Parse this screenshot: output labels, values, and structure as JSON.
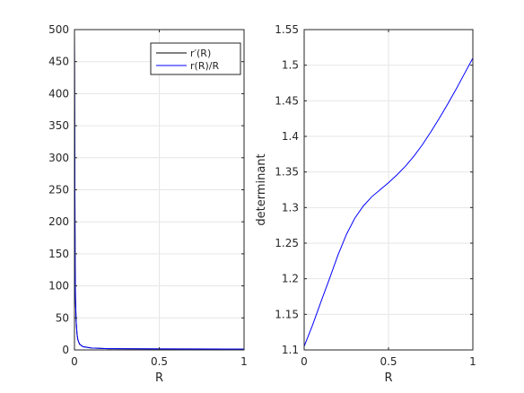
{
  "chart_data": [
    {
      "type": "line",
      "xlabel": "R",
      "ylabel": "",
      "xlim": [
        0,
        1
      ],
      "ylim": [
        0,
        500
      ],
      "xticks": [
        0,
        0.5,
        1
      ],
      "xtick_labels": [
        "0",
        "0.5",
        "1"
      ],
      "yticks": [
        0,
        50,
        100,
        150,
        200,
        250,
        300,
        350,
        400,
        450,
        500
      ],
      "ytick_labels": [
        "0",
        "50",
        "100",
        "150",
        "200",
        "250",
        "300",
        "350",
        "400",
        "450",
        "500"
      ],
      "grid": true,
      "legend": "top-right",
      "series": [
        {
          "name": "r′(R)",
          "color": "#000000",
          "x": [
            0,
            0.002,
            0.004,
            0.006,
            0.01,
            0.015,
            0.02,
            0.03,
            0.05,
            0.1,
            0.2,
            0.5,
            1
          ],
          "y": [
            500,
            300,
            130,
            80,
            45,
            25,
            16,
            9,
            5,
            3,
            2,
            1.5,
            1.3
          ]
        },
        {
          "name": "r(R)/R",
          "color": "#0000ff",
          "x": [
            0,
            0.002,
            0.004,
            0.006,
            0.01,
            0.015,
            0.02,
            0.03,
            0.05,
            0.1,
            0.2,
            0.5,
            1
          ],
          "y": [
            500,
            300,
            130,
            80,
            45,
            25,
            16,
            9,
            5,
            3,
            2,
            1.5,
            1.3
          ]
        }
      ]
    },
    {
      "type": "line",
      "xlabel": "R",
      "ylabel": "determinant",
      "xlim": [
        0,
        1
      ],
      "ylim": [
        1.1,
        1.55
      ],
      "xticks": [
        0,
        0.5,
        1
      ],
      "xtick_labels": [
        "0",
        "0.5",
        "1"
      ],
      "yticks": [
        1.1,
        1.15,
        1.2,
        1.25,
        1.3,
        1.35,
        1.4,
        1.45,
        1.5,
        1.55
      ],
      "ytick_labels": [
        "1.1",
        "1.15",
        "1.2",
        "1.25",
        "1.3",
        "1.35",
        "1.4",
        "1.45",
        "1.5",
        "1.55"
      ],
      "grid": true,
      "series": [
        {
          "name": "",
          "color": "#0000ff",
          "x": [
            0,
            0.05,
            0.1,
            0.15,
            0.2,
            0.25,
            0.3,
            0.35,
            0.4,
            0.45,
            0.5,
            0.55,
            0.6,
            0.65,
            0.7,
            0.75,
            0.8,
            0.85,
            0.9,
            0.95,
            1.0
          ],
          "y": [
            1.105,
            1.135,
            1.168,
            1.2,
            1.233,
            1.262,
            1.285,
            1.302,
            1.315,
            1.325,
            1.335,
            1.346,
            1.358,
            1.372,
            1.388,
            1.406,
            1.425,
            1.445,
            1.466,
            1.488,
            1.51
          ]
        }
      ]
    }
  ]
}
